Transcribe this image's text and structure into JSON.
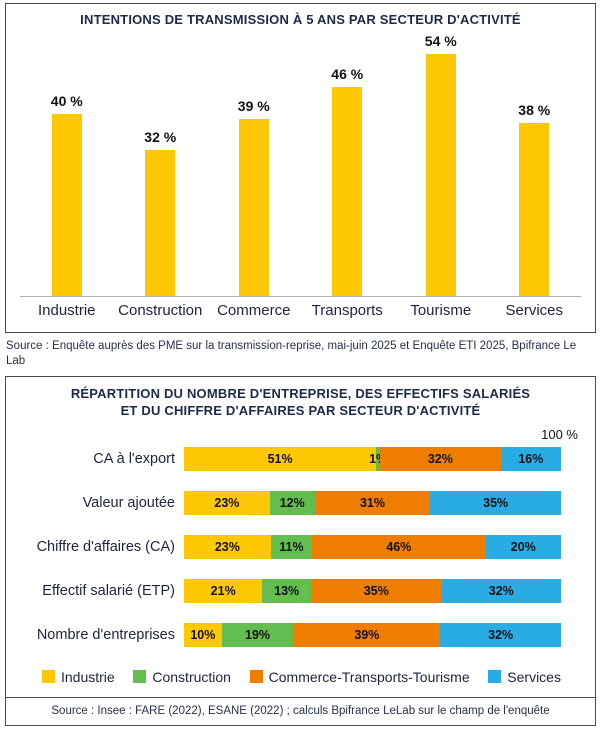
{
  "chart_data": [
    {
      "type": "bar",
      "title": "INTENTIONS DE TRANSMISSION À 5 ANS PAR SECTEUR D'ACTIVITÉ",
      "categories": [
        "Industrie",
        "Construction",
        "Commerce",
        "Transports",
        "Tourisme",
        "Services"
      ],
      "values": [
        40,
        32,
        39,
        46,
        54,
        38
      ],
      "value_labels": [
        "40 %",
        "32 %",
        "39 %",
        "46 %",
        "54 %",
        "38 %"
      ],
      "bar_color": "#FFC805",
      "ylim": [
        0,
        60
      ],
      "grid": false,
      "legend_position": "none",
      "source": "Source : Enquête auprès des PME sur la transmission-reprise, mai-juin 2025 et Enquête ETI 2025, Bpifrance Le Lab"
    },
    {
      "type": "bar",
      "stacked": true,
      "orientation": "horizontal",
      "title_line1": "RÉPARTITION DU NOMBRE D'ENTREPRISE, DES EFFECTIFS SALARIÉS",
      "title_line2": "ET DU CHIFFRE D'AFFAIRES PAR SECTEUR D'ACTIVITÉ",
      "axis_max_label": "100 %",
      "xlim": [
        0,
        100
      ],
      "grid": false,
      "legend_position": "bottom",
      "categories": [
        "CA à l'export",
        "Valeur ajoutée",
        "Chiffre d'affaires (CA)",
        "Effectif salarié (ETP)",
        "Nombre d'entreprises"
      ],
      "series": [
        {
          "name": "Industrie",
          "color": "#FFC805",
          "values": [
            51,
            23,
            23,
            21,
            10
          ]
        },
        {
          "name": "Construction",
          "color": "#63BE4F",
          "values": [
            1,
            12,
            11,
            13,
            19
          ]
        },
        {
          "name": "Commerce-Transports-Tourisme",
          "color": "#EF7D00",
          "values": [
            32,
            31,
            46,
            35,
            39
          ]
        },
        {
          "name": "Services",
          "color": "#29ABE3",
          "values": [
            16,
            35,
            20,
            32,
            32
          ]
        }
      ],
      "source": "Source : Insee : FARE (2022), ESANE (2022) ; calculs Bpifrance LeLab sur le champ de l'enquête"
    }
  ]
}
